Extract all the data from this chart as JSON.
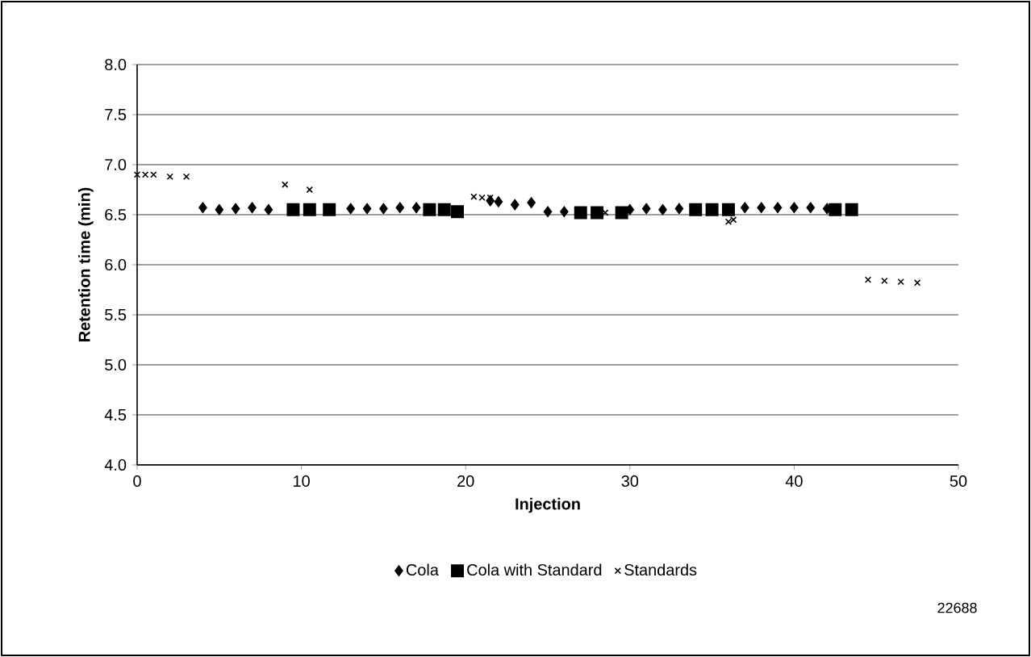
{
  "chart_data": {
    "type": "scatter",
    "xlabel": "Injection",
    "ylabel": "Retention time (min)",
    "xlim": [
      0,
      50
    ],
    "ylim": [
      4,
      8
    ],
    "xticks": [
      0,
      10,
      20,
      30,
      40,
      50
    ],
    "yticks": [
      {
        "value": 4,
        "label": "4.0"
      },
      {
        "value": 4.5,
        "label": "4.5"
      },
      {
        "value": 5,
        "label": "5.0"
      },
      {
        "value": 5.5,
        "label": "5.5"
      },
      {
        "value": 6,
        "label": "6.0"
      },
      {
        "value": 6.5,
        "label": "6.5"
      },
      {
        "value": 7,
        "label": "7.0"
      },
      {
        "value": 7.5,
        "label": "7.5"
      },
      {
        "value": 8,
        "label": "8.0"
      }
    ],
    "grid": "y",
    "legend": "bottom",
    "annotations": [
      "22688"
    ],
    "series": [
      {
        "name": "Cola",
        "color": "#000000",
        "marker": "diamond",
        "x": [
          4,
          5,
          6,
          7,
          8,
          13,
          14,
          15,
          16,
          17,
          21.5,
          22,
          23,
          24,
          25,
          26,
          30,
          31,
          32,
          33,
          37,
          38,
          39,
          40,
          41,
          42
        ],
        "values": [
          6.57,
          6.55,
          6.56,
          6.57,
          6.55,
          6.56,
          6.56,
          6.56,
          6.57,
          6.57,
          6.64,
          6.63,
          6.6,
          6.62,
          6.53,
          6.53,
          6.55,
          6.56,
          6.55,
          6.56,
          6.57,
          6.57,
          6.57,
          6.57,
          6.57,
          6.56
        ]
      },
      {
        "name": "Cola with Standard",
        "color": "#000000",
        "marker": "square",
        "x": [
          9.5,
          10.5,
          11.7,
          17.8,
          18.7,
          19.5,
          27,
          28,
          29.5,
          34,
          35,
          36,
          42.5,
          43.5
        ],
        "values": [
          6.55,
          6.55,
          6.55,
          6.55,
          6.55,
          6.53,
          6.52,
          6.52,
          6.52,
          6.55,
          6.55,
          6.55,
          6.55,
          6.55
        ]
      },
      {
        "name": "Standards",
        "color": "#000000",
        "marker": "cross",
        "x": [
          0,
          0.5,
          1,
          2,
          3,
          9,
          10.5,
          20.5,
          21,
          21.5,
          28.5,
          36,
          36.3,
          44.5,
          45.5,
          46.5,
          47.5
        ],
        "values": [
          6.9,
          6.9,
          6.9,
          6.88,
          6.88,
          6.8,
          6.75,
          6.68,
          6.67,
          6.67,
          6.52,
          6.43,
          6.45,
          5.85,
          5.84,
          5.83,
          5.82
        ]
      }
    ]
  }
}
